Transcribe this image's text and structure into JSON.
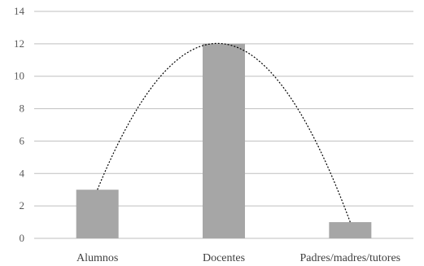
{
  "chart_data": {
    "type": "bar",
    "categories": [
      "Alumnos",
      "Docentes",
      "Padres/madres/tutores"
    ],
    "values": [
      3,
      12,
      1
    ],
    "title": "",
    "xlabel": "",
    "ylabel": "",
    "ylim": [
      0,
      14
    ],
    "yticks": [
      "0",
      "2",
      "4",
      "6",
      "8",
      "10",
      "12",
      "14"
    ],
    "grid": true,
    "legend": "none",
    "trendline": "polynomial",
    "bar_color": "#a6a6a6",
    "grid_color": "#bfbfbf",
    "trend_color": "#000000"
  }
}
